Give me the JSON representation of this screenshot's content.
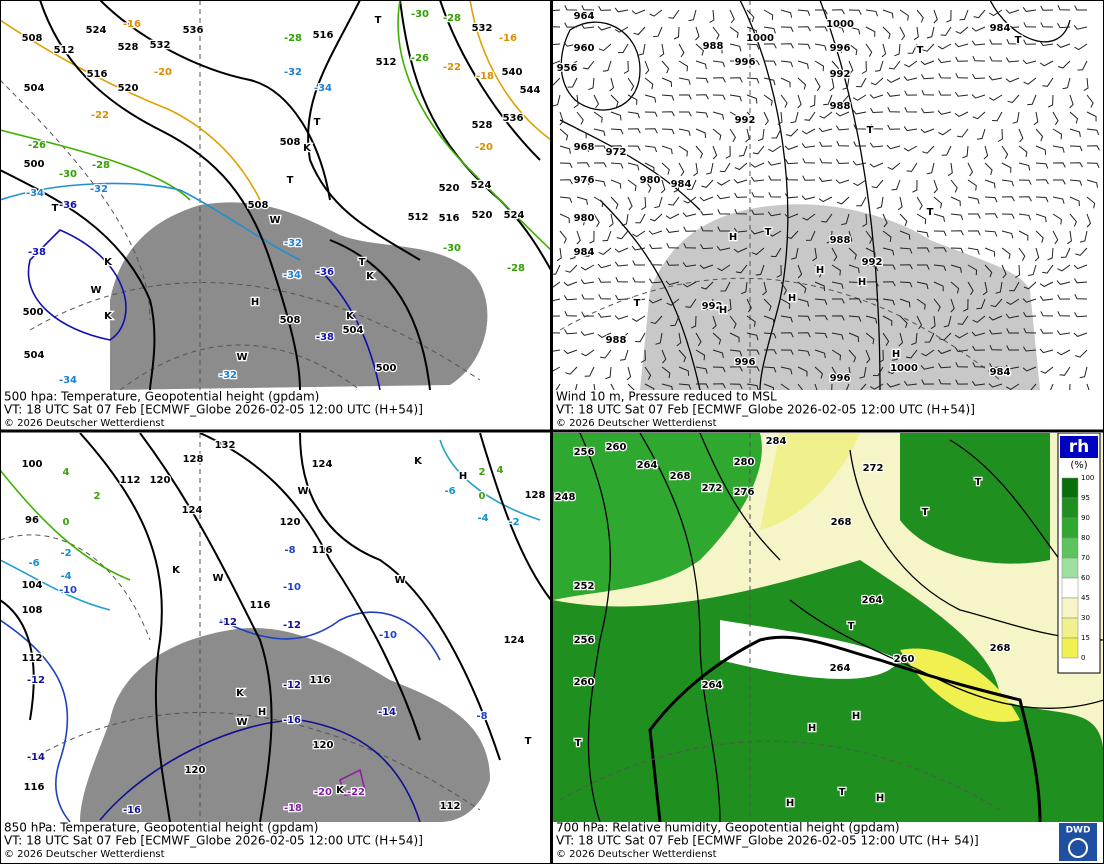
{
  "panels": [
    {
      "caption": {
        "title": "500 hpa: Temperature, Geopotential height (gpdam)",
        "valid_time": "VT: 18 UTC Sat  07 Feb [ECMWF_Globe 2026-02-05 12:00 UTC  (H+54)]",
        "copyright": "© 2026 Deutscher Wetterdienst"
      },
      "labels": [
        "508",
        "512",
        "516",
        "520",
        "524",
        "528",
        "532",
        "536",
        "-16",
        "-20",
        "-22",
        "-26",
        "-28",
        "-30",
        "-32",
        "-34",
        "-36",
        "-38",
        "500",
        "500",
        "504",
        "504",
        "-34",
        "-28",
        "-32",
        "-34",
        "516",
        "512",
        "-30",
        "-28",
        "-26",
        "-22",
        "532",
        "-16",
        "-18",
        "540",
        "544",
        "536",
        "528",
        "-20",
        "520",
        "524",
        "516",
        "520",
        "524",
        "512",
        "508",
        "508",
        "-32",
        "-34",
        "-36",
        "-38",
        "-32",
        "504",
        "500",
        "-30",
        "-28",
        "508",
        "T",
        "T",
        "T",
        "K",
        "T",
        "K",
        "W",
        "K",
        "H",
        "T",
        "K",
        "K",
        "W",
        "W"
      ]
    },
    {
      "caption": {
        "title": "Wind 10 m, Pressure reduced to MSL",
        "valid_time": "VT: 18 UTC Sat  07 Feb [ECMWF_Globe 2026-02-05 12:00 UTC (H+54)]",
        "copyright": "© 2026 Deutscher Wetterdienst"
      },
      "labels": [
        "964",
        "960",
        "956",
        "968",
        "972",
        "976",
        "980",
        "984",
        "980",
        "984",
        "988",
        "996",
        "1000",
        "1000",
        "996",
        "992",
        "988",
        "992",
        "984",
        "988",
        "992",
        "992",
        "988",
        "996",
        "996",
        "1000",
        "984",
        "T",
        "T",
        "H",
        "T",
        "H",
        "H",
        "H",
        "H",
        "T",
        "T",
        "H",
        "T"
      ]
    },
    {
      "caption": {
        "title": "850 hPa:  Temperature, Geopotential height (gpdam)",
        "valid_time": "VT: 18 UTC Sat  07 Feb [ECMWF_Globe 2026-02-05 12:00 UTC (H+54)]",
        "copyright": "© 2026 Deutscher Wetterdienst"
      },
      "labels": [
        "100",
        "112",
        "120",
        "124",
        "128",
        "132",
        "124",
        "120",
        "116",
        "116",
        "112",
        "108",
        "104",
        "96",
        "116",
        "4",
        "2",
        "0",
        "-2",
        "-4",
        "-6",
        "-8",
        "-10",
        "-10",
        "-12",
        "-12",
        "-10",
        "-12",
        "-12",
        "-14",
        "-16",
        "-14",
        "-16",
        "-20",
        "-22",
        "-18",
        "-6",
        "-4",
        "-2",
        "2",
        "4",
        "0",
        "128",
        "124",
        "120",
        "120",
        "112",
        "-8",
        "116",
        "K",
        "W",
        "K",
        "W",
        "W",
        "K",
        "H",
        "W",
        "H",
        "T",
        "K",
        "H"
      ]
    },
    {
      "caption": {
        "title": "700 hPa:  Relative humidity, Geopotential height (gpdam)",
        "valid_time": "VT: 18 UTC Sat  07 Feb [ECMWF_Globe  2026-02-05 12:00 UTC  (H+ 54)]",
        "copyright": "© 2026 Deutscher Wetterdienst"
      },
      "labels": [
        "256",
        "260",
        "264",
        "268",
        "272",
        "276",
        "280",
        "284",
        "272",
        "268",
        "264",
        "260",
        "268",
        "264",
        "264",
        "260",
        "256",
        "252",
        "248",
        "T",
        "T",
        "T",
        "H",
        "H",
        "T",
        "H",
        "T",
        "H"
      ],
      "legend": {
        "title": "rh",
        "unit": "(%)",
        "ticks": [
          "100",
          "95",
          "90",
          "80",
          "70",
          "60",
          "45",
          "30",
          "15",
          "0"
        ]
      },
      "logo": "DWD"
    }
  ]
}
